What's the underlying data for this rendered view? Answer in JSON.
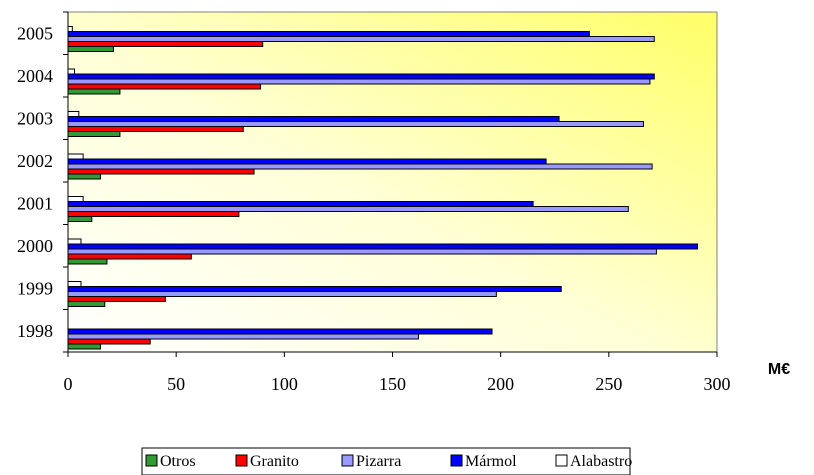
{
  "chart_data": {
    "type": "bar",
    "orientation": "horizontal",
    "categories": [
      "1998",
      "1999",
      "2000",
      "2001",
      "2002",
      "2003",
      "2004",
      "2005"
    ],
    "series": [
      {
        "name": "Otros",
        "color": "#339933",
        "values": [
          15,
          17,
          18,
          11,
          15,
          24,
          24,
          21
        ]
      },
      {
        "name": "Granito",
        "color": "#ff0000",
        "values": [
          38,
          45,
          57,
          79,
          86,
          81,
          89,
          90
        ]
      },
      {
        "name": "Pizarra",
        "color": "#9999ff",
        "values": [
          162,
          198,
          272,
          259,
          270,
          266,
          269,
          271
        ]
      },
      {
        "name": "Mármol",
        "color": "#0000ff",
        "values": [
          196,
          228,
          291,
          215,
          221,
          227,
          271,
          241
        ]
      },
      {
        "name": "Alabastro",
        "color": "#ffffff",
        "values": [
          0,
          6,
          6,
          7,
          7,
          5,
          3,
          2
        ]
      }
    ],
    "xlim": [
      0,
      300
    ],
    "xticks": [
      "0",
      "50",
      "100",
      "150",
      "200",
      "250",
      "300"
    ],
    "xunit": "M€",
    "legend_position": "bottom",
    "grid": false,
    "plot_background": "yellow-to-white gradient"
  }
}
